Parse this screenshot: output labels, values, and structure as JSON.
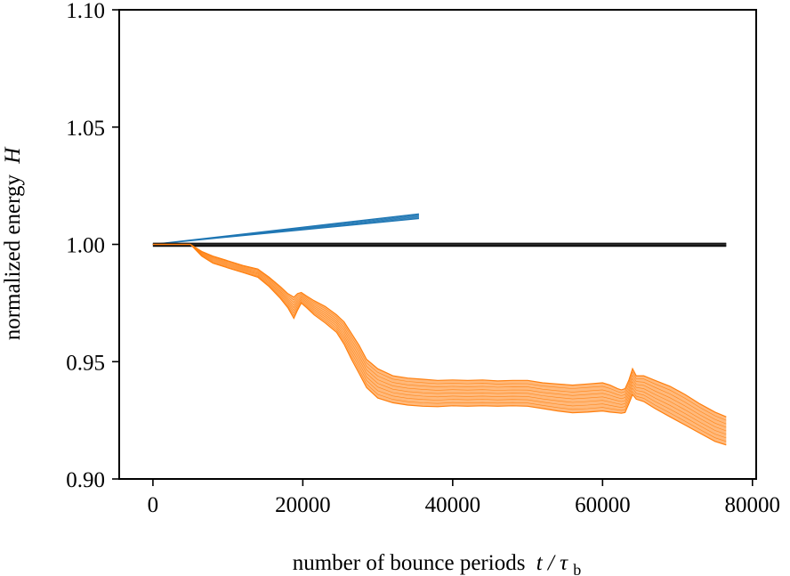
{
  "chart_data": {
    "type": "line",
    "title": "",
    "xlabel": "number of bounce periods",
    "xlabel_math": "t / τ",
    "xlabel_sub": "b",
    "ylabel": "normalized energy",
    "ylabel_math": "H",
    "xlim": [
      -4500,
      80500
    ],
    "ylim": [
      0.9,
      1.1
    ],
    "xticks": [
      0,
      20000,
      40000,
      60000,
      80000
    ],
    "yticks": [
      0.9,
      0.95,
      1.0,
      1.05,
      1.1
    ],
    "xtick_labels": [
      "0",
      "20000",
      "40000",
      "60000",
      "80000"
    ],
    "ytick_labels": [
      "0.90",
      "0.95",
      "1.00",
      "1.05",
      "1.10"
    ],
    "grid": false,
    "series": [
      {
        "color": "#1f77b4",
        "style": "band",
        "x": [
          0,
          35500
        ],
        "upper": [
          1.0,
          1.013
        ],
        "lower": [
          1.0,
          1.011
        ]
      },
      {
        "color": "#111111",
        "style": "band",
        "x": [
          0,
          76500
        ],
        "upper": [
          1.0005,
          1.0005
        ],
        "lower": [
          0.9992,
          0.9992
        ]
      },
      {
        "color": "#ff7f0e",
        "style": "band",
        "x": [
          0,
          5000,
          6500,
          8000,
          10000,
          12000,
          14000,
          15500,
          17000,
          18000,
          18800,
          19300,
          19800,
          20500,
          21500,
          23000,
          24500,
          25500,
          26500,
          27500,
          28500,
          30000,
          32000,
          34000,
          36000,
          38000,
          40000,
          42000,
          44000,
          46000,
          48000,
          50000,
          52000,
          54000,
          56000,
          58000,
          60000,
          61000,
          62000,
          62500,
          63000,
          63500,
          64000,
          64500,
          65500,
          67000,
          69000,
          71000,
          73000,
          75000,
          76500
        ],
        "upper": [
          1.0,
          1.0,
          0.997,
          0.995,
          0.993,
          0.991,
          0.9895,
          0.986,
          0.982,
          0.979,
          0.9775,
          0.979,
          0.9795,
          0.978,
          0.976,
          0.9735,
          0.97,
          0.967,
          0.962,
          0.957,
          0.951,
          0.947,
          0.944,
          0.943,
          0.9425,
          0.942,
          0.9422,
          0.942,
          0.9422,
          0.9418,
          0.942,
          0.942,
          0.941,
          0.9405,
          0.94,
          0.9405,
          0.941,
          0.94,
          0.9385,
          0.938,
          0.9385,
          0.942,
          0.947,
          0.944,
          0.944,
          0.942,
          0.9395,
          0.936,
          0.932,
          0.9285,
          0.9265
        ],
        "lower": [
          1.0,
          1.0,
          0.995,
          0.992,
          0.99,
          0.988,
          0.986,
          0.982,
          0.977,
          0.973,
          0.9685,
          0.972,
          0.975,
          0.973,
          0.97,
          0.9665,
          0.9625,
          0.9575,
          0.951,
          0.945,
          0.939,
          0.9345,
          0.9325,
          0.9315,
          0.931,
          0.9308,
          0.9312,
          0.931,
          0.9312,
          0.931,
          0.9312,
          0.931,
          0.93,
          0.929,
          0.9282,
          0.9285,
          0.929,
          0.9285,
          0.9282,
          0.928,
          0.9283,
          0.932,
          0.936,
          0.934,
          0.933,
          0.93,
          0.9265,
          0.923,
          0.9195,
          0.916,
          0.9145
        ]
      }
    ]
  }
}
